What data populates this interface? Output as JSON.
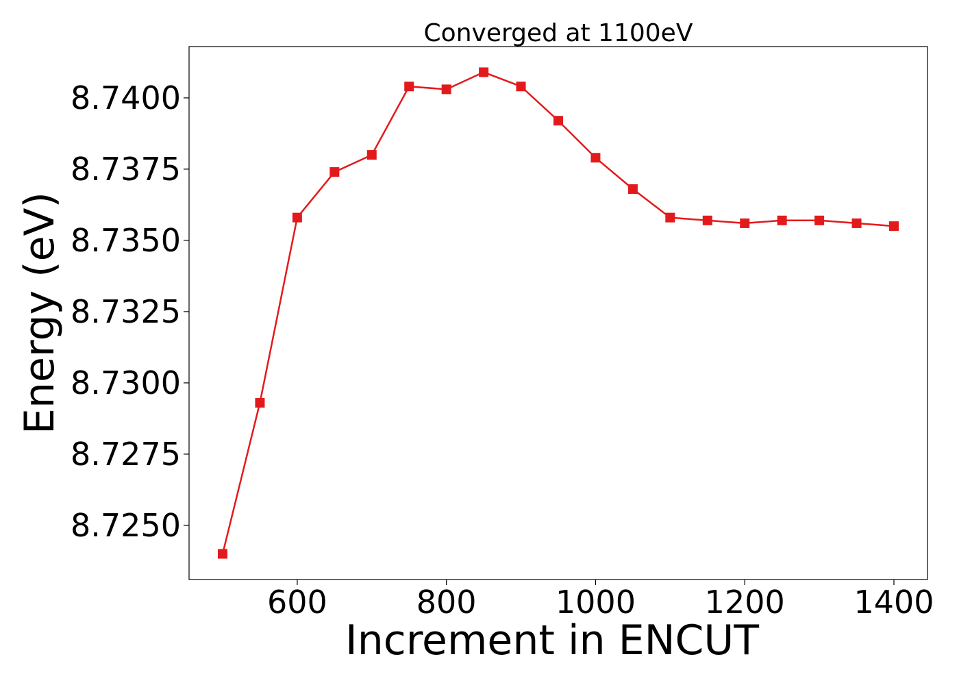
{
  "chart_data": {
    "type": "line",
    "title": "Converged at 1100eV",
    "xlabel": "Increment in ENCUT",
    "ylabel": "Energy (eV)",
    "xlim": [
      455,
      1445
    ],
    "ylim": [
      8.7231,
      8.7418
    ],
    "xticks": [
      600,
      800,
      1000,
      1200,
      1400
    ],
    "yticks": [
      8.725,
      8.7275,
      8.73,
      8.7325,
      8.735,
      8.7375,
      8.74
    ],
    "ytick_labels": [
      "8.7250",
      "8.7275",
      "8.7300",
      "8.7325",
      "8.7350",
      "8.7375",
      "8.7400"
    ],
    "grid": false,
    "marker": "square",
    "color": "#e31a1c",
    "series": [
      {
        "x": [
          500,
          550,
          600,
          650,
          700,
          750,
          800,
          850,
          900,
          950,
          1000,
          1050,
          1100,
          1150,
          1200,
          1250,
          1300,
          1350,
          1400
        ],
        "y": [
          8.724,
          8.7293,
          8.7358,
          8.7374,
          8.738,
          8.7404,
          8.7403,
          8.7409,
          8.7404,
          8.7392,
          8.7379,
          8.7368,
          8.7358,
          8.7357,
          8.7356,
          8.7357,
          8.7357,
          8.7356,
          8.7355
        ]
      }
    ]
  }
}
